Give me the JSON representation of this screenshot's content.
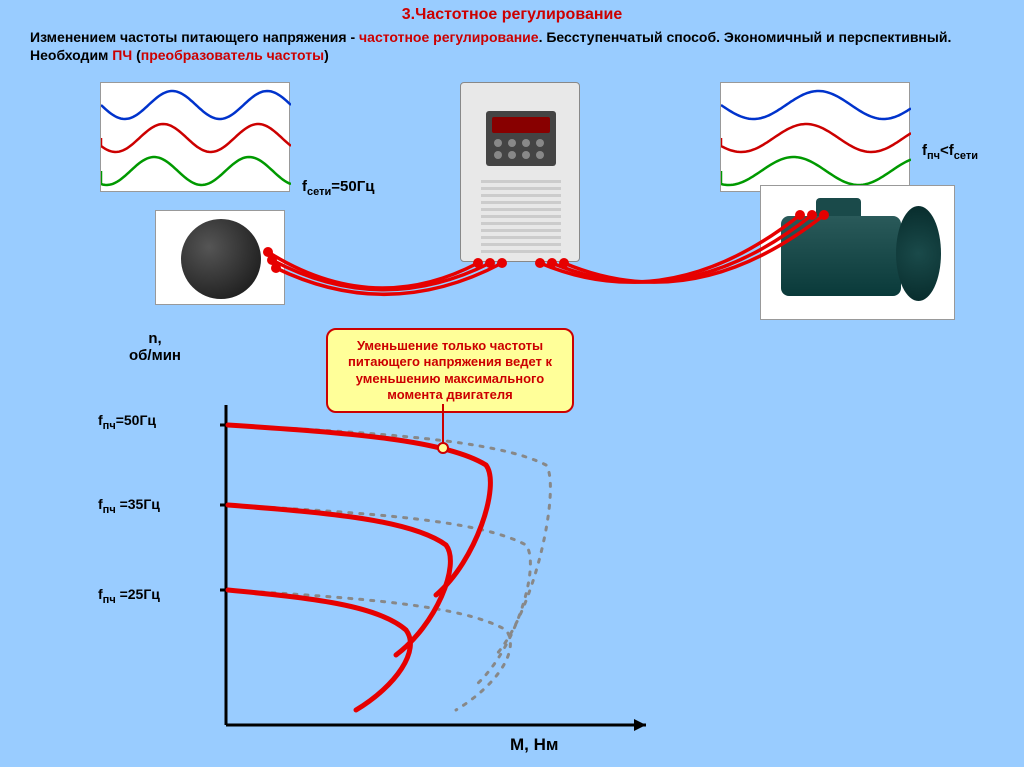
{
  "title": {
    "num": "3.",
    "text": "Частотное регулирование"
  },
  "intro": {
    "part1": "Изменением частоты питающего напряжения - ",
    "red1": "частотное регулирование",
    "part2": ". Бесступенчатый способ. Экономичный и перспективный. Необходим ",
    "red2": "ПЧ",
    "part3": " (",
    "red3": "преобразователь частоты",
    "part4": ")"
  },
  "labels": {
    "fseti": "f",
    "fseti_sub": "сети",
    "fseti_val": "=50Гц",
    "fpch": "f",
    "fpch_sub": "пч",
    "lt": "<",
    "f50": "=50Гц",
    "f35": " =35Гц",
    "f25": " =25Гц"
  },
  "callout": "Уменьшение только частоты питающего напряжения ведет к уменьшению максимального момента двигателя",
  "axis": {
    "y1": "n,",
    "y2": "об/мин",
    "x": "M, Нм"
  },
  "waves": {
    "left_colors": [
      "#0033cc",
      "#cc0000",
      "#009900"
    ],
    "left_period": 95,
    "right_colors": [
      "#0033cc",
      "#cc0000",
      "#009900"
    ],
    "right_period": 130
  },
  "cable_color": "#e60000",
  "graph": {
    "axis_color": "#000000",
    "curve_color": "#e60000",
    "dotted_color": "#888888",
    "curve_width": 5,
    "dotted_width": 3
  }
}
